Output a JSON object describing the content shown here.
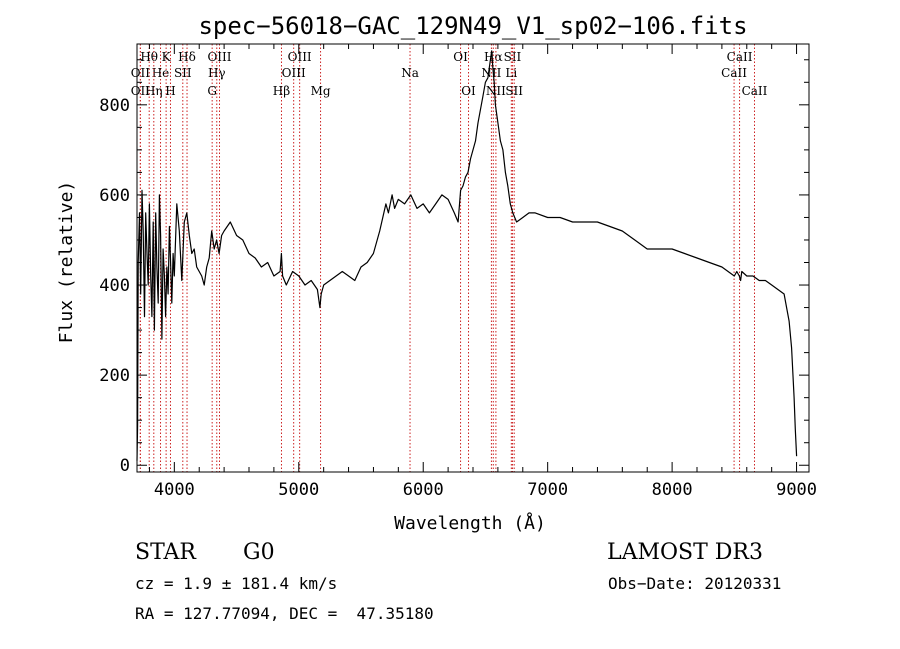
{
  "chart_data": {
    "type": "line",
    "title": "spec−56018−GAC_129N49_V1_sp02−106.fits",
    "xlabel": "Wavelength (Å)",
    "ylabel": "Flux (relative)",
    "xlim": [
      3700,
      9100
    ],
    "ylim": [
      -15,
      935
    ],
    "xticks": [
      4000,
      5000,
      6000,
      7000,
      8000,
      9000
    ],
    "yticks": [
      0,
      200,
      400,
      600,
      800
    ],
    "series": [
      {
        "name": "flux",
        "x": [
          3700,
          3705,
          3710,
          3720,
          3730,
          3740,
          3750,
          3760,
          3770,
          3780,
          3790,
          3800,
          3810,
          3820,
          3830,
          3840,
          3850,
          3860,
          3870,
          3880,
          3890,
          3900,
          3910,
          3920,
          3930,
          3940,
          3950,
          3960,
          3970,
          3980,
          3990,
          4000,
          4020,
          4040,
          4060,
          4080,
          4100,
          4120,
          4140,
          4160,
          4180,
          4200,
          4220,
          4240,
          4260,
          4280,
          4300,
          4320,
          4340,
          4360,
          4380,
          4400,
          4450,
          4500,
          4550,
          4600,
          4650,
          4700,
          4750,
          4800,
          4850,
          4860,
          4870,
          4900,
          4950,
          5000,
          5050,
          5100,
          5150,
          5170,
          5180,
          5200,
          5250,
          5300,
          5350,
          5400,
          5450,
          5500,
          5550,
          5600,
          5650,
          5700,
          5720,
          5750,
          5770,
          5800,
          5850,
          5900,
          5950,
          6000,
          6050,
          6100,
          6150,
          6200,
          6250,
          6280,
          6300,
          6320,
          6340,
          6360,
          6380,
          6400,
          6420,
          6440,
          6460,
          6480,
          6500,
          6520,
          6540,
          6550,
          6560,
          6570,
          6580,
          6600,
          6620,
          6640,
          6660,
          6680,
          6700,
          6720,
          6750,
          6800,
          6850,
          6900,
          7000,
          7100,
          7200,
          7300,
          7400,
          7500,
          7600,
          7700,
          7800,
          7900,
          8000,
          8100,
          8200,
          8300,
          8400,
          8500,
          8520,
          8540,
          8550,
          8560,
          8600,
          8650,
          8700,
          8750,
          8800,
          8850,
          8900,
          8920,
          8940,
          8960,
          8980,
          8990,
          9000
        ],
        "values": [
          10,
          90,
          450,
          560,
          380,
          610,
          520,
          330,
          560,
          470,
          400,
          580,
          420,
          330,
          540,
          300,
          560,
          440,
          360,
          600,
          510,
          280,
          480,
          420,
          330,
          440,
          380,
          530,
          450,
          360,
          470,
          420,
          580,
          520,
          410,
          540,
          560,
          510,
          470,
          480,
          440,
          430,
          420,
          400,
          440,
          460,
          520,
          480,
          500,
          470,
          510,
          520,
          540,
          510,
          500,
          470,
          460,
          440,
          450,
          420,
          430,
          470,
          420,
          400,
          430,
          420,
          400,
          410,
          390,
          350,
          380,
          400,
          410,
          420,
          430,
          420,
          410,
          440,
          450,
          470,
          520,
          580,
          560,
          600,
          570,
          590,
          580,
          600,
          570,
          580,
          560,
          580,
          600,
          590,
          560,
          540,
          610,
          620,
          640,
          650,
          680,
          700,
          720,
          760,
          790,
          820,
          850,
          860,
          900,
          920,
          880,
          850,
          800,
          760,
          720,
          700,
          650,
          620,
          580,
          560,
          540,
          550,
          560,
          560,
          550,
          550,
          540,
          540,
          540,
          530,
          520,
          500,
          480,
          480,
          480,
          470,
          460,
          450,
          440,
          420,
          430,
          420,
          410,
          430,
          420,
          420,
          410,
          410,
          400,
          390,
          380,
          350,
          320,
          260,
          150,
          80,
          20
        ]
      }
    ],
    "line_markers": [
      {
        "label": "Hθ",
        "x": 3798,
        "row": 1
      },
      {
        "label": "OII",
        "x": 3727,
        "row": 2
      },
      {
        "label": "OII",
        "x": 3727,
        "row": 3
      },
      {
        "label": "He",
        "x": 3889,
        "row": 2
      },
      {
        "label": "Hη",
        "x": 3835,
        "row": 3
      },
      {
        "label": "K",
        "x": 3934,
        "row": 1
      },
      {
        "label": "H",
        "x": 3969,
        "row": 3
      },
      {
        "label": "SII",
        "x": 4068,
        "row": 2
      },
      {
        "label": "Hδ",
        "x": 4102,
        "row": 1
      },
      {
        "label": "OIII",
        "x": 4363,
        "row": 1
      },
      {
        "label": "Hγ",
        "x": 4341,
        "row": 2
      },
      {
        "label": "G",
        "x": 4304,
        "row": 3
      },
      {
        "label": "Hβ",
        "x": 4861,
        "row": 3
      },
      {
        "label": "OIII",
        "x": 5007,
        "row": 1
      },
      {
        "label": "OIII",
        "x": 4959,
        "row": 2
      },
      {
        "label": "Mg",
        "x": 5175,
        "row": 3
      },
      {
        "label": "Na",
        "x": 5894,
        "row": 2
      },
      {
        "label": "OI",
        "x": 6300,
        "row": 1
      },
      {
        "label": "OI",
        "x": 6364,
        "row": 3
      },
      {
        "label": "Hα",
        "x": 6563,
        "row": 1
      },
      {
        "label": "NII",
        "x": 6548,
        "row": 2
      },
      {
        "label": "NII",
        "x": 6584,
        "row": 3
      },
      {
        "label": "SII",
        "x": 6717,
        "row": 1
      },
      {
        "label": "Li",
        "x": 6708,
        "row": 2
      },
      {
        "label": "SII",
        "x": 6731,
        "row": 3
      },
      {
        "label": "CaII",
        "x": 8542,
        "row": 1
      },
      {
        "label": "CaII",
        "x": 8498,
        "row": 2
      },
      {
        "label": "CaII",
        "x": 8662,
        "row": 3
      }
    ]
  },
  "info": {
    "object_class": "STAR",
    "subclass": "G0",
    "survey": "LAMOST DR3",
    "cz": "cz = 1.9 ± 181.4 km/s",
    "obs_date": "Obs−Date: 20120331",
    "radec": "RA = 127.77094, DEC =  47.35180"
  },
  "colors": {
    "line_marker": "#cc2222",
    "spectrum": "#000000"
  }
}
